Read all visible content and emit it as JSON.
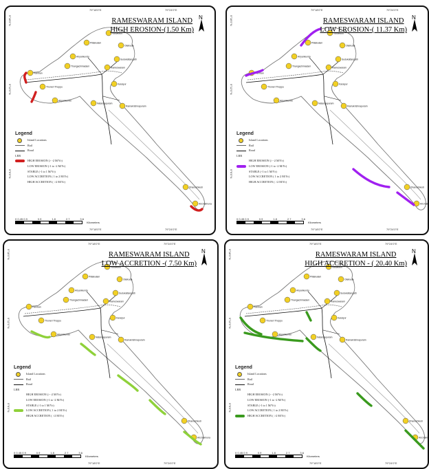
{
  "panels": [
    {
      "title_line1": "RAMESWARAM ISLAND",
      "title_line2": "HIGH EROSION-(1.50 Km)",
      "highlight_color": "#d11f1f",
      "highlight_label": "HIGH EROSION (> -2 M/Yr)",
      "highlight_row": 0
    },
    {
      "title_line1": "RAMESWARAM ISLAND",
      "title_line2": "LOW EROSION-( 11.37 Km)",
      "highlight_color": "#a020f0",
      "highlight_label": "LOW EROSION (-1 to -2 M/Yr)",
      "highlight_row": 1
    },
    {
      "title_line1": "RAMESWARAM ISLAND",
      "title_line2": "LOW ACCRETION -( 7.50 Km)",
      "highlight_color": "#8fd13a",
      "highlight_label": "LOW ACCRETION ( 1 to 2 M/Yr)",
      "highlight_row": 3
    },
    {
      "title_line1": "RAMESWARAM ISLAND",
      "title_line2": "HIGH ACCRETION - ( 20.40 Km)",
      "highlight_color": "#3a9a1e",
      "highlight_label": "HIGH ACCRETION ( >2 M/Yr)",
      "highlight_row": 4
    }
  ],
  "legend": {
    "heading": "Legend",
    "island_locations": "Island Locations",
    "rail": "Rail",
    "road": "Road",
    "lrr": "LRR",
    "classes": [
      "HIGH EROSION (> -2 M/Yr)",
      "LOW EROSION (-1 to -2 M/Yr)",
      "STABLE (-1 to 1 M/Yr)",
      "LOW ACCRETION ( 1 to 2 M/Yr)",
      "HIGH ACCRETION ( >2 M/Yr)"
    ]
  },
  "scale": {
    "ticks": [
      "0 0.45 0.9",
      "0.9",
      "1.8",
      "2.7",
      "3.6"
    ],
    "unit": "Kilometers"
  },
  "coords": {
    "lon1": "79°18'0\"E",
    "lon2": "79°24'0\"E",
    "lat1": "9°18'0\"N",
    "lat2": "9°12'0\"N",
    "lat3": "9°6'0\"N"
  },
  "north_label": "N",
  "places": [
    "Vadakadu",
    "Pillaikulam",
    "Olaikuda",
    "Ariyankundu",
    "Sudukattanpatti",
    "Thangachimadam",
    "Rameswaram",
    "Pamban",
    "Thoneri Thoppu",
    "Karaiyur",
    "Ariyankundu",
    "Natarajapuram",
    "Ramakrishnapuram",
    "Dhanushkodi",
    "Arichalmunai"
  ],
  "colors": {
    "point": "#f2d024",
    "rail": "#666666",
    "road": "#111111",
    "coast": "#777777"
  }
}
